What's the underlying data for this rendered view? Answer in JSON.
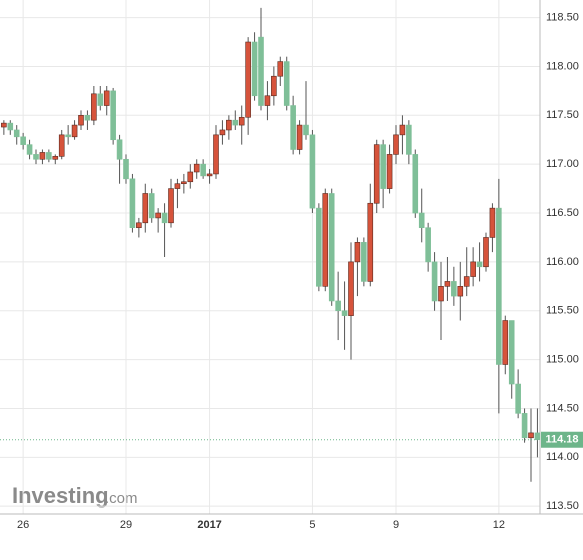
{
  "chart_data": {
    "type": "candlestick",
    "categories": [
      null,
      null,
      null,
      "26",
      null,
      null,
      null,
      null,
      null,
      null,
      null,
      null,
      null,
      null,
      null,
      null,
      null,
      null,
      null,
      "29",
      null,
      null,
      null,
      null,
      null,
      null,
      null,
      null,
      null,
      null,
      null,
      null,
      "2017",
      null,
      null,
      null,
      null,
      null,
      null,
      null,
      null,
      null,
      null,
      null,
      null,
      null,
      null,
      null,
      "5",
      null,
      null,
      null,
      null,
      null,
      null,
      null,
      null,
      null,
      null,
      null,
      null,
      "9",
      null,
      null,
      null,
      null,
      null,
      null,
      null,
      null,
      null,
      null,
      null,
      null,
      null,
      null,
      null,
      "12",
      null,
      null,
      null,
      null,
      null,
      null
    ],
    "open": [
      117.38,
      117.42,
      117.35,
      117.28,
      117.2,
      117.1,
      117.05,
      117.12,
      117.05,
      117.08,
      117.3,
      117.28,
      117.4,
      117.5,
      117.45,
      117.72,
      117.6,
      117.75,
      117.25,
      117.05,
      116.85,
      116.35,
      116.4,
      116.7,
      116.45,
      116.5,
      116.4,
      116.75,
      116.8,
      116.82,
      116.92,
      117.0,
      116.88,
      116.9,
      117.3,
      117.35,
      117.45,
      117.4,
      117.48,
      118.25,
      118.3,
      117.6,
      117.7,
      117.9,
      118.05,
      117.6,
      117.15,
      117.4,
      117.3,
      116.55,
      115.75,
      116.7,
      115.6,
      115.5,
      115.45,
      116.0,
      116.2,
      115.8,
      116.6,
      117.2,
      116.75,
      117.1,
      117.3,
      117.4,
      117.1,
      116.5,
      116.35,
      116.0,
      115.6,
      115.75,
      115.8,
      115.65,
      115.75,
      115.85,
      116.0,
      115.95,
      116.25,
      116.55,
      114.95,
      115.4,
      114.75,
      114.45,
      114.2,
      114.25
    ],
    "high": [
      117.45,
      117.45,
      117.4,
      117.32,
      117.25,
      117.15,
      117.15,
      117.15,
      117.1,
      117.35,
      117.4,
      117.45,
      117.55,
      117.55,
      117.8,
      117.8,
      117.8,
      117.78,
      117.3,
      117.1,
      116.9,
      116.45,
      116.8,
      116.75,
      116.55,
      116.6,
      116.85,
      116.85,
      116.9,
      117.0,
      117.05,
      117.05,
      116.95,
      117.4,
      117.45,
      117.5,
      117.55,
      117.6,
      118.3,
      118.35,
      118.6,
      117.85,
      118.0,
      118.1,
      118.1,
      117.7,
      117.45,
      117.85,
      117.35,
      116.6,
      116.75,
      116.75,
      115.9,
      115.8,
      116.2,
      116.25,
      116.25,
      116.8,
      117.25,
      117.25,
      117.2,
      117.4,
      117.5,
      117.45,
      117.15,
      116.75,
      116.4,
      116.1,
      116.0,
      116.05,
      115.95,
      116.0,
      116.15,
      116.15,
      116.2,
      116.3,
      116.6,
      116.85,
      115.45,
      115.4,
      114.9,
      114.5,
      114.5,
      114.5
    ],
    "low": [
      117.3,
      117.3,
      117.2,
      117.15,
      117.05,
      117.0,
      117.0,
      117.02,
      117.0,
      117.05,
      117.2,
      117.25,
      117.35,
      117.35,
      117.4,
      117.55,
      117.5,
      117.2,
      116.8,
      116.8,
      116.3,
      116.25,
      116.3,
      116.4,
      116.3,
      116.05,
      116.35,
      116.55,
      116.7,
      116.75,
      116.85,
      116.85,
      116.8,
      116.85,
      117.2,
      117.25,
      117.35,
      117.2,
      117.3,
      117.65,
      117.55,
      117.45,
      117.6,
      117.8,
      117.55,
      117.1,
      117.1,
      117.25,
      116.5,
      115.7,
      115.7,
      115.55,
      115.2,
      115.1,
      115.0,
      115.65,
      115.75,
      115.75,
      116.5,
      116.55,
      116.7,
      117.0,
      117.1,
      117.0,
      116.45,
      116.2,
      115.9,
      115.5,
      115.2,
      115.6,
      115.55,
      115.4,
      115.65,
      115.75,
      115.8,
      115.9,
      116.1,
      114.45,
      114.85,
      114.6,
      114.4,
      114.15,
      113.75,
      114.0
    ],
    "close": [
      117.42,
      117.35,
      117.28,
      117.2,
      117.1,
      117.05,
      117.12,
      117.05,
      117.08,
      117.3,
      117.28,
      117.4,
      117.5,
      117.45,
      117.72,
      117.6,
      117.75,
      117.25,
      117.05,
      116.85,
      116.35,
      116.4,
      116.7,
      116.45,
      116.5,
      116.4,
      116.75,
      116.8,
      116.82,
      116.92,
      117.0,
      116.88,
      116.9,
      117.3,
      117.35,
      117.45,
      117.4,
      117.48,
      118.25,
      117.7,
      117.6,
      117.7,
      117.9,
      118.05,
      117.6,
      117.15,
      117.4,
      117.3,
      116.55,
      115.75,
      116.7,
      115.6,
      115.5,
      115.45,
      116.0,
      116.2,
      115.8,
      116.6,
      117.2,
      116.75,
      117.1,
      117.3,
      117.4,
      117.1,
      116.5,
      116.35,
      116.0,
      115.6,
      115.75,
      115.8,
      115.65,
      115.75,
      115.85,
      116.0,
      115.95,
      116.25,
      116.55,
      114.95,
      115.4,
      114.75,
      114.45,
      114.2,
      114.25,
      114.18
    ],
    "up_color": "#d6533b",
    "down_color": "#7fbf98",
    "ylim": [
      113.42,
      118.68
    ],
    "yticks": [
      {
        "value": 113.5,
        "label": "113.50"
      },
      {
        "value": 114,
        "label": "114.00"
      },
      {
        "value": 114.5,
        "label": "114.50"
      },
      {
        "value": 115,
        "label": "115.00"
      },
      {
        "value": 115.5,
        "label": "115.50"
      },
      {
        "value": 116,
        "label": "116.00"
      },
      {
        "value": 116.5,
        "label": "116.50"
      },
      {
        "value": 117,
        "label": "117.00"
      },
      {
        "value": 117.5,
        "label": "117.50"
      },
      {
        "value": 118,
        "label": "118.00"
      },
      {
        "value": 118.5,
        "label": "118.50"
      }
    ],
    "grid": true,
    "last_price": 114.18,
    "last_price_color": "#6db58a",
    "watermark": [
      "Investing",
      ".com"
    ]
  }
}
